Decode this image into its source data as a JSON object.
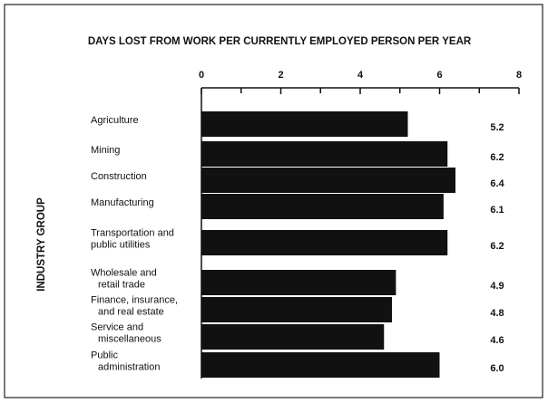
{
  "chart_data": {
    "type": "barh",
    "title": "DAYS LOST FROM WORK PER CURRENTLY EMPLOYED PERSON PER YEAR",
    "y_label": "INDUSTRY GROUP",
    "categories": [
      [
        "Agriculture"
      ],
      [
        "Mining"
      ],
      [
        "Construction"
      ],
      [
        "Manufacturing"
      ],
      [
        "Transportation and",
        "public utilities"
      ],
      [
        "Wholesale and",
        "retail trade"
      ],
      [
        "Finance, insurance,",
        "and real estate"
      ],
      [
        "Service and",
        "miscellaneous"
      ],
      [
        "Public",
        "administration"
      ]
    ],
    "values": [
      5.2,
      6.2,
      6.4,
      6.1,
      6.2,
      4.9,
      4.8,
      4.6,
      6.0
    ],
    "value_labels": [
      "5.2",
      "6.2",
      "6.4",
      "6.1",
      "6.2",
      "4.9",
      "4.8",
      "4.6",
      "6.0"
    ],
    "color": "#111111",
    "xlim": [
      0,
      8
    ],
    "xticks": [
      0,
      2,
      4,
      6,
      8
    ],
    "xminorticks": [
      1,
      3,
      5,
      7
    ]
  }
}
